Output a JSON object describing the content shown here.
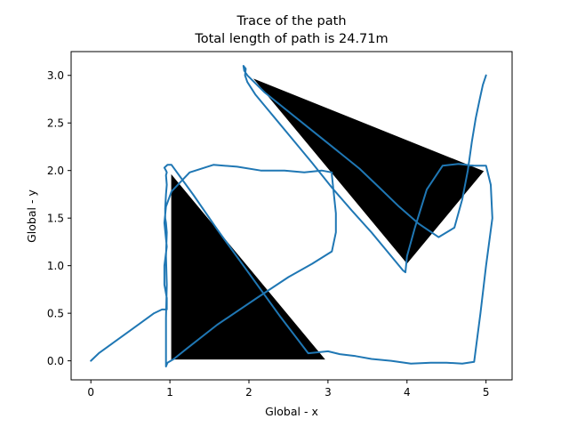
{
  "chart_data": {
    "type": "line",
    "title": "Trace of the path",
    "subtitle": "Total length of path is 24.71m",
    "xlabel": "Global - x",
    "ylabel": "Global - y",
    "xlim": [
      -0.25,
      5.33
    ],
    "ylim": [
      -0.2,
      3.25
    ],
    "xticks": [
      0,
      1,
      2,
      3,
      4,
      5
    ],
    "yticks": [
      0.0,
      0.5,
      1.0,
      1.5,
      2.0,
      2.5,
      3.0
    ],
    "xtick_labels": [
      "0",
      "1",
      "2",
      "3",
      "4",
      "5"
    ],
    "ytick_labels": [
      "0.0",
      "0.5",
      "1.0",
      "1.5",
      "2.0",
      "2.5",
      "3.0"
    ],
    "grid": false,
    "colors": {
      "path": "#1f77b4",
      "obstacle": "#000000",
      "obstacle_edge": "#ffffff"
    },
    "obstacles": [
      {
        "vertices": [
          [
            1.0,
            2.0
          ],
          [
            1.0,
            0.0
          ],
          [
            3.0,
            0.0
          ]
        ]
      },
      {
        "vertices": [
          [
            2.0,
            3.0
          ],
          [
            5.0,
            2.0
          ],
          [
            4.0,
            1.0
          ]
        ]
      }
    ],
    "series": [
      {
        "x": [
          0.0,
          0.1,
          0.3,
          0.55,
          0.8,
          0.9,
          0.96,
          0.96,
          0.93,
          0.93,
          0.96,
          0.93,
          0.95,
          1.02,
          1.25,
          1.55,
          1.85,
          2.15,
          2.45,
          2.7,
          2.92,
          3.05,
          3.05,
          3.1,
          3.1,
          3.05,
          2.8,
          2.5,
          2.1,
          1.6,
          1.2,
          1.05,
          0.97,
          0.95,
          0.95,
          0.95,
          0.96,
          0.95,
          0.96,
          0.95,
          0.94,
          0.94,
          0.95,
          0.96,
          0.95,
          0.96,
          0.95,
          0.93,
          0.97,
          1.02,
          1.3,
          1.6,
          2.0,
          2.4,
          2.75,
          3.0,
          3.15,
          3.35,
          3.55,
          3.8,
          4.05,
          4.3,
          4.5,
          4.7,
          4.85,
          4.93,
          5.0,
          5.08,
          5.06,
          5.0,
          4.85,
          4.65,
          4.45,
          4.25,
          4.1,
          4.0,
          3.98,
          3.95,
          3.75,
          3.55,
          3.3,
          3.05,
          2.8,
          2.55,
          2.3,
          2.08,
          1.98,
          1.95,
          1.96,
          1.93,
          1.94,
          1.98,
          2.2,
          2.5,
          2.8,
          3.1,
          3.4,
          3.65,
          3.9,
          4.15,
          4.4,
          4.6,
          4.7,
          4.77,
          4.82,
          4.87,
          4.92,
          4.96,
          5.0
        ],
        "y": [
          0.0,
          0.08,
          0.2,
          0.35,
          0.5,
          0.54,
          0.54,
          0.66,
          0.8,
          1.0,
          1.2,
          1.45,
          1.62,
          1.78,
          1.98,
          2.06,
          2.04,
          2.0,
          2.0,
          1.98,
          2.0,
          1.98,
          1.95,
          1.55,
          1.35,
          1.15,
          1.02,
          0.88,
          0.66,
          0.38,
          0.12,
          0.02,
          -0.02,
          -0.06,
          0.15,
          0.45,
          0.8,
          1.1,
          1.35,
          1.45,
          1.5,
          1.6,
          1.75,
          1.85,
          1.95,
          1.98,
          2.0,
          2.03,
          2.06,
          2.06,
          1.74,
          1.38,
          0.92,
          0.46,
          0.08,
          0.1,
          0.07,
          0.05,
          0.02,
          0.0,
          -0.03,
          -0.02,
          -0.02,
          -0.03,
          -0.01,
          0.5,
          1.0,
          1.5,
          1.85,
          2.05,
          2.05,
          2.07,
          2.05,
          1.8,
          1.4,
          1.1,
          0.93,
          0.95,
          1.15,
          1.35,
          1.58,
          1.82,
          2.08,
          2.33,
          2.58,
          2.8,
          2.93,
          3.0,
          3.07,
          3.1,
          3.05,
          3.0,
          2.82,
          2.62,
          2.42,
          2.22,
          2.02,
          1.82,
          1.62,
          1.44,
          1.3,
          1.4,
          1.7,
          2.0,
          2.3,
          2.55,
          2.75,
          2.9,
          3.0
        ]
      }
    ]
  }
}
